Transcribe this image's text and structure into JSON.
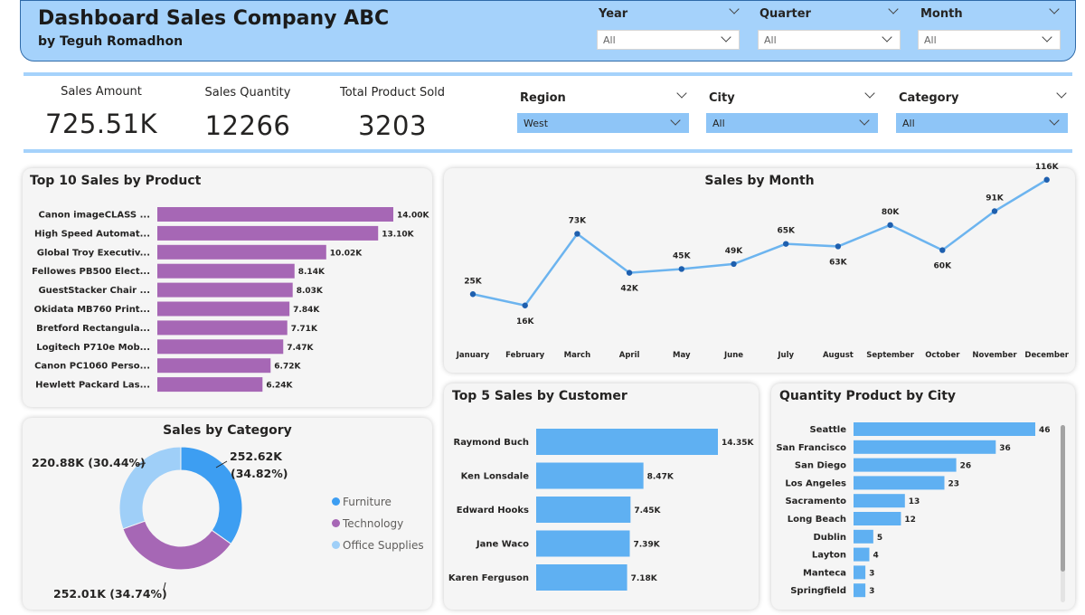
{
  "header": {
    "title": "Dashboard Sales Company ABC",
    "subtitle": "by Teguh Romadhon"
  },
  "top_slicers": [
    {
      "label": "Year",
      "value": "All"
    },
    {
      "label": "Quarter",
      "value": "All"
    },
    {
      "label": "Month",
      "value": "All"
    }
  ],
  "kpis": [
    {
      "label": "Sales Amount",
      "value": "725.51K"
    },
    {
      "label": "Sales Quantity",
      "value": "12266"
    },
    {
      "label": "Total Product Sold",
      "value": "3203"
    }
  ],
  "filters": [
    {
      "label": "Region",
      "value": "West"
    },
    {
      "label": "City",
      "value": "All"
    },
    {
      "label": "Category",
      "value": "All"
    }
  ],
  "colors": {
    "purple": "#a667b5",
    "blue": "#5fb0f2",
    "line": "#6cb4ef",
    "line_point": "#1e5fae",
    "donut_furniture": "#3d9ef2",
    "donut_technology": "#a667b5",
    "donut_office": "#9fcff8",
    "header_bg": "#a5d2fb",
    "slicer_selected": "#8ec5f7"
  },
  "top_products": {
    "title": "Top 10 Sales by Product",
    "categories": [
      "Canon imageCLASS ...",
      "High Speed Automat...",
      "Global Troy Executiv...",
      "Fellowes PB500 Elect...",
      "GuestStacker Chair ...",
      "Okidata MB760 Print...",
      "Bretford Rectangula...",
      "Logitech P710e Mob...",
      "Canon PC1060 Perso...",
      "Hewlett Packard Las..."
    ],
    "values": [
      14.0,
      13.1,
      10.02,
      8.14,
      8.03,
      7.84,
      7.71,
      7.47,
      6.72,
      6.24
    ],
    "labels": [
      "14.00K",
      "13.10K",
      "10.02K",
      "8.14K",
      "8.03K",
      "7.84K",
      "7.71K",
      "7.47K",
      "6.72K",
      "6.24K"
    ]
  },
  "sales_by_month": {
    "title": "Sales by Month",
    "months": [
      "January",
      "February",
      "March",
      "April",
      "May",
      "June",
      "July",
      "August",
      "September",
      "October",
      "November",
      "December"
    ],
    "values": [
      25,
      16,
      73,
      42,
      45,
      49,
      65,
      63,
      80,
      60,
      91,
      116
    ],
    "labels": [
      "25K",
      "16K",
      "73K",
      "42K",
      "45K",
      "49K",
      "65K",
      "63K",
      "80K",
      "60K",
      "91K",
      "116K"
    ],
    "label_below": [
      false,
      true,
      false,
      true,
      false,
      false,
      false,
      true,
      false,
      true,
      false,
      false
    ]
  },
  "sales_by_category": {
    "title": "Sales by Category",
    "label_furniture": "252.62K",
    "label_furniture_pct": "(34.82%)",
    "label_office": "220.88K (30.44%)",
    "label_technology": "252.01K (34.74%)",
    "legend": [
      "Furniture",
      "Technology",
      "Office Supplies"
    ],
    "values": [
      252.62,
      252.01,
      220.88
    ]
  },
  "top_customers": {
    "title": "Top 5 Sales by Customer",
    "categories": [
      "Raymond Buch",
      "Ken Lonsdale",
      "Edward Hooks",
      "Jane Waco",
      "Karen Ferguson"
    ],
    "values": [
      14.35,
      8.47,
      7.45,
      7.39,
      7.18
    ],
    "labels": [
      "14.35K",
      "8.47K",
      "7.45K",
      "7.39K",
      "7.18K"
    ]
  },
  "city_quantity": {
    "title": "Quantity Product by City",
    "categories": [
      "Seattle",
      "San Francisco",
      "San Diego",
      "Los Angeles",
      "Sacramento",
      "Long Beach",
      "Dublin",
      "Layton",
      "Manteca",
      "Springfield"
    ],
    "values": [
      46,
      36,
      26,
      23,
      13,
      12,
      5,
      4,
      3,
      3
    ],
    "labels": [
      "46",
      "36",
      "26",
      "23",
      "13",
      "12",
      "5",
      "4",
      "3",
      "3"
    ]
  },
  "chart_data": [
    {
      "type": "bar",
      "title": "Top 10 Sales by Product",
      "categories": [
        "Canon imageCLASS ...",
        "High Speed Automat...",
        "Global Troy Executiv...",
        "Fellowes PB500 Elect...",
        "GuestStacker Chair ...",
        "Okidata MB760 Print...",
        "Bretford Rectangula...",
        "Logitech P710e Mob...",
        "Canon PC1060 Perso...",
        "Hewlett Packard Las..."
      ],
      "values": [
        14.0,
        13.1,
        10.02,
        8.14,
        8.03,
        7.84,
        7.71,
        7.47,
        6.72,
        6.24
      ],
      "orientation": "horizontal"
    },
    {
      "type": "line",
      "title": "Sales by Month",
      "x": [
        "January",
        "February",
        "March",
        "April",
        "May",
        "June",
        "July",
        "August",
        "September",
        "October",
        "November",
        "December"
      ],
      "values": [
        25,
        16,
        73,
        42,
        45,
        49,
        65,
        63,
        80,
        60,
        91,
        116
      ]
    },
    {
      "type": "pie",
      "title": "Sales by Category",
      "categories": [
        "Furniture",
        "Technology",
        "Office Supplies"
      ],
      "values": [
        252.62,
        252.01,
        220.88
      ],
      "legend": "right"
    },
    {
      "type": "bar",
      "title": "Top 5 Sales by Customer",
      "categories": [
        "Raymond Buch",
        "Ken Lonsdale",
        "Edward Hooks",
        "Jane Waco",
        "Karen Ferguson"
      ],
      "values": [
        14.35,
        8.47,
        7.45,
        7.39,
        7.18
      ],
      "orientation": "horizontal"
    },
    {
      "type": "bar",
      "title": "Quantity Product by City",
      "categories": [
        "Seattle",
        "San Francisco",
        "San Diego",
        "Los Angeles",
        "Sacramento",
        "Long Beach",
        "Dublin",
        "Layton",
        "Manteca",
        "Springfield"
      ],
      "values": [
        46,
        36,
        26,
        23,
        13,
        12,
        5,
        4,
        3,
        3
      ],
      "orientation": "horizontal"
    }
  ]
}
